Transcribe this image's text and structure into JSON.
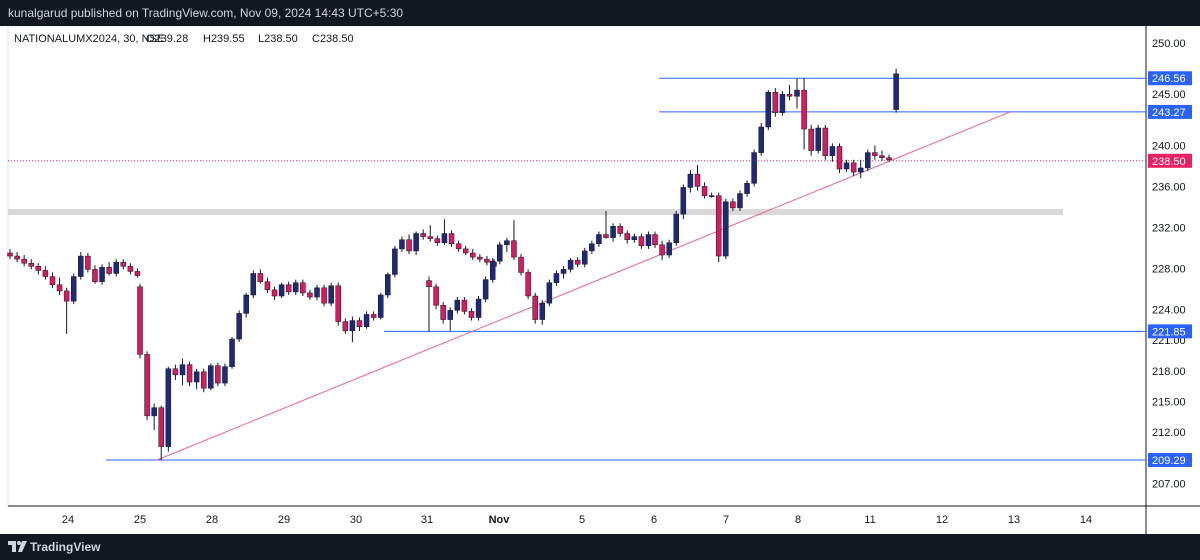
{
  "header": {
    "published": "kunalgarud published on TradingView.com, Nov 09, 2024 14:43 UTC+5:30"
  },
  "footer": {
    "brand": "TradingView"
  },
  "colors": {
    "up": "#1e2a78",
    "down": "#d81b60",
    "hline": "#2962ff",
    "trend": "#f06292",
    "zone": "#d8d8d8",
    "price_tag": "#2962ff",
    "last_tag": "#e91e63"
  },
  "chart_data": {
    "type": "candlestick",
    "title": "NATIONALUMX2024, 30, NSE",
    "ohlc_label": {
      "o": "O239.28",
      "h": "H239.55",
      "l": "L238.50",
      "c": "C238.50"
    },
    "ylim": [
      204,
      252
    ],
    "y_ticks": [
      "250.00",
      "245.00",
      "240.00",
      "236.00",
      "232.00",
      "228.00",
      "224.00",
      "221.00",
      "218.00",
      "215.00",
      "212.00",
      "207.00"
    ],
    "y_tick_values": [
      250,
      245,
      240,
      236,
      232,
      228,
      224,
      221,
      218,
      215,
      212,
      207
    ],
    "x_ticks": [
      "24",
      "25",
      "28",
      "29",
      "30",
      "31",
      "Nov",
      "5",
      "6",
      "7",
      "8",
      "11",
      "12",
      "13",
      "14"
    ],
    "price_labels": [
      {
        "label": "246.56",
        "value": 246.56,
        "kind": "level"
      },
      {
        "label": "243.27",
        "value": 243.27,
        "kind": "level"
      },
      {
        "label": "238.50",
        "value": 238.5,
        "kind": "last"
      },
      {
        "label": "221.85",
        "value": 221.85,
        "kind": "level"
      },
      {
        "label": "209.29",
        "value": 209.29,
        "kind": "level"
      }
    ],
    "horizontal_lines": [
      {
        "value": 246.56,
        "from_date": "Nov 6",
        "to": "right"
      },
      {
        "value": 243.27,
        "from_date": "Nov 6",
        "to": "right"
      },
      {
        "value": 221.85,
        "from_date": "Oct 30",
        "to": "right"
      },
      {
        "value": 209.29,
        "from_date": "Oct 24",
        "to": "right"
      }
    ],
    "zone": {
      "low": 233.2,
      "high": 233.8
    },
    "trendline": {
      "from": {
        "date": "Oct 25",
        "value": 209.29
      },
      "to": {
        "date": "Nov 13",
        "value": 243.27
      }
    },
    "candles": [
      [
        229.5,
        229.9,
        228.9,
        229.2
      ],
      [
        229.2,
        229.6,
        228.6,
        228.9
      ],
      [
        228.9,
        229.3,
        228.2,
        228.5
      ],
      [
        228.5,
        228.9,
        227.9,
        228.2
      ],
      [
        228.2,
        228.5,
        227.4,
        227.8
      ],
      [
        227.8,
        228.2,
        226.9,
        227.2
      ],
      [
        227.2,
        227.6,
        226.1,
        226.4
      ],
      [
        226.4,
        227.1,
        225.4,
        225.8
      ],
      [
        225.8,
        226.1,
        221.6,
        224.8
      ],
      [
        224.8,
        227.5,
        224.5,
        227.2
      ],
      [
        227.2,
        229.6,
        226.9,
        229.2
      ],
      [
        229.2,
        229.5,
        227.6,
        227.9
      ],
      [
        227.9,
        228.3,
        226.5,
        226.7
      ],
      [
        226.7,
        228.4,
        226.4,
        228.1
      ],
      [
        228.1,
        228.6,
        227.3,
        227.5
      ],
      [
        227.5,
        228.9,
        227.2,
        228.6
      ],
      [
        228.6,
        228.9,
        227.9,
        228.2
      ],
      [
        228.2,
        228.5,
        227.4,
        227.7
      ],
      [
        227.7,
        228.0,
        227.1,
        227.3
      ],
      [
        226.2,
        226.5,
        219.2,
        219.6
      ],
      [
        219.6,
        219.9,
        213.2,
        213.6
      ],
      [
        213.6,
        214.8,
        212.2,
        214.4
      ],
      [
        214.4,
        214.6,
        209.29,
        210.6
      ],
      [
        210.6,
        218.4,
        210.1,
        218.2
      ],
      [
        218.2,
        218.6,
        217.1,
        217.6
      ],
      [
        217.6,
        219.2,
        216.6,
        218.6
      ],
      [
        218.6,
        218.9,
        216.5,
        216.9
      ],
      [
        216.9,
        218.2,
        216.2,
        217.9
      ],
      [
        217.9,
        218.2,
        215.9,
        216.3
      ],
      [
        216.3,
        218.7,
        216.1,
        218.5
      ],
      [
        218.5,
        218.8,
        216.5,
        216.8
      ],
      [
        216.8,
        218.7,
        216.5,
        218.4
      ],
      [
        218.4,
        221.3,
        218.2,
        221.1
      ],
      [
        221.1,
        223.9,
        220.8,
        223.6
      ],
      [
        223.6,
        225.6,
        223.2,
        225.4
      ],
      [
        225.4,
        227.8,
        225.1,
        227.5
      ],
      [
        227.5,
        227.9,
        226.5,
        226.7
      ],
      [
        226.7,
        227.1,
        225.6,
        225.9
      ],
      [
        225.9,
        226.2,
        224.9,
        225.3
      ],
      [
        225.3,
        226.6,
        225.1,
        226.4
      ],
      [
        226.4,
        226.7,
        225.4,
        225.7
      ],
      [
        225.7,
        226.9,
        225.4,
        226.6
      ],
      [
        226.6,
        226.9,
        225.3,
        225.6
      ],
      [
        225.6,
        225.9,
        224.9,
        225.2
      ],
      [
        225.2,
        226.4,
        224.9,
        226.1
      ],
      [
        226.1,
        226.4,
        224.3,
        224.6
      ],
      [
        224.6,
        226.6,
        224.3,
        226.3
      ],
      [
        226.3,
        226.6,
        222.4,
        222.8
      ],
      [
        222.8,
        223.1,
        221.6,
        221.9
      ],
      [
        221.9,
        223.3,
        220.8,
        222.9
      ],
      [
        222.9,
        223.2,
        221.9,
        222.3
      ],
      [
        222.3,
        223.8,
        222.1,
        223.5
      ],
      [
        223.5,
        223.8,
        222.9,
        223.2
      ],
      [
        223.2,
        225.6,
        223.0,
        225.4
      ],
      [
        225.4,
        227.6,
        225.1,
        227.4
      ],
      [
        227.4,
        230.2,
        227.1,
        229.9
      ],
      [
        229.9,
        231.1,
        229.6,
        230.8
      ],
      [
        230.8,
        231.3,
        229.4,
        229.7
      ],
      [
        229.7,
        231.6,
        229.3,
        231.4
      ],
      [
        231.4,
        231.8,
        230.8,
        231.1
      ],
      [
        231.1,
        232.2,
        230.6,
        230.9
      ],
      [
        230.9,
        231.2,
        230.2,
        230.5
      ],
      [
        230.5,
        232.8,
        230.3,
        231.4
      ],
      [
        231.4,
        231.7,
        230.1,
        230.4
      ],
      [
        230.4,
        230.7,
        229.6,
        229.9
      ],
      [
        229.9,
        230.2,
        229.3,
        229.5
      ],
      [
        229.5,
        229.9,
        228.8,
        229.1
      ],
      [
        229.1,
        229.4,
        228.6,
        228.9
      ],
      [
        228.9,
        229.2,
        228.3,
        228.6
      ],
      [
        228.6,
        228.9,
        227.9,
        228.2
      ],
      [
        226.8,
        227.2,
        221.85,
        226.2
      ],
      [
        226.2,
        226.5,
        224.0,
        224.4
      ],
      [
        224.4,
        224.7,
        222.6,
        223.0
      ],
      [
        223.0,
        224.2,
        221.9,
        223.9
      ],
      [
        223.9,
        225.2,
        223.6,
        224.9
      ],
      [
        224.9,
        225.2,
        223.5,
        223.8
      ],
      [
        223.8,
        224.1,
        222.9,
        223.2
      ],
      [
        223.2,
        225.3,
        222.9,
        225.0
      ],
      [
        225.0,
        227.2,
        224.7,
        226.9
      ],
      [
        226.9,
        229.0,
        226.6,
        228.7
      ],
      [
        228.7,
        230.6,
        228.4,
        230.3
      ],
      [
        230.3,
        231.0,
        229.6,
        230.7
      ],
      [
        230.7,
        232.7,
        228.8,
        229.1
      ],
      [
        229.1,
        229.4,
        227.3,
        227.6
      ],
      [
        227.6,
        227.9,
        225.0,
        225.3
      ],
      [
        225.3,
        225.6,
        222.6,
        223.0
      ],
      [
        223.0,
        224.9,
        222.5,
        224.6
      ],
      [
        224.6,
        226.9,
        224.3,
        226.6
      ],
      [
        226.6,
        227.8,
        226.3,
        227.5
      ],
      [
        227.5,
        228.2,
        227.0,
        227.9
      ],
      [
        227.9,
        229.0,
        227.6,
        228.8
      ],
      [
        228.8,
        229.1,
        228.1,
        228.4
      ],
      [
        228.4,
        230.0,
        228.1,
        229.7
      ],
      [
        229.7,
        230.7,
        229.4,
        230.4
      ],
      [
        230.4,
        231.6,
        230.1,
        231.3
      ],
      [
        231.3,
        233.6,
        230.9,
        231.0
      ],
      [
        231.0,
        232.4,
        230.6,
        232.1
      ],
      [
        232.1,
        232.4,
        231.1,
        231.4
      ],
      [
        231.4,
        231.7,
        230.4,
        230.8
      ],
      [
        230.8,
        231.4,
        230.5,
        231.1
      ],
      [
        231.1,
        231.4,
        229.9,
        230.2
      ],
      [
        230.2,
        231.6,
        229.9,
        231.3
      ],
      [
        231.3,
        231.6,
        230.0,
        230.3
      ],
      [
        230.3,
        230.7,
        228.8,
        229.3
      ],
      [
        229.3,
        230.8,
        229.0,
        230.5
      ],
      [
        230.5,
        233.6,
        230.2,
        233.3
      ],
      [
        233.3,
        236.2,
        232.8,
        235.9
      ],
      [
        235.9,
        237.6,
        235.4,
        237.2
      ],
      [
        237.2,
        238.1,
        235.6,
        236.0
      ],
      [
        236.0,
        236.4,
        234.8,
        235.1
      ],
      [
        235.1,
        235.4,
        234.9,
        235.1
      ],
      [
        235.1,
        235.4,
        228.6,
        229.2
      ],
      [
        229.2,
        234.8,
        228.9,
        234.5
      ],
      [
        234.5,
        234.8,
        233.6,
        233.9
      ],
      [
        233.9,
        235.6,
        233.6,
        235.3
      ],
      [
        235.3,
        236.6,
        235.0,
        236.3
      ],
      [
        236.3,
        239.6,
        236.0,
        239.3
      ],
      [
        239.3,
        242.2,
        239.0,
        241.8
      ],
      [
        241.8,
        245.4,
        241.5,
        245.2
      ],
      [
        245.2,
        245.6,
        242.8,
        243.2
      ],
      [
        243.2,
        245.3,
        242.9,
        245.0
      ],
      [
        245.0,
        245.9,
        244.4,
        244.8
      ],
      [
        244.8,
        246.56,
        243.6,
        245.4
      ],
      [
        245.4,
        246.56,
        239.6,
        241.6
      ],
      [
        241.6,
        242.0,
        239.0,
        239.5
      ],
      [
        239.5,
        242.0,
        239.2,
        241.7
      ],
      [
        241.7,
        242.0,
        238.6,
        239.0
      ],
      [
        239.0,
        240.2,
        238.4,
        239.9
      ],
      [
        239.9,
        240.2,
        237.3,
        237.7
      ],
      [
        237.7,
        238.6,
        237.4,
        238.3
      ],
      [
        238.3,
        238.6,
        237.0,
        237.4
      ],
      [
        237.4,
        238.6,
        236.8,
        237.8
      ],
      [
        237.8,
        239.6,
        237.5,
        239.3
      ],
      [
        239.3,
        240.0,
        238.6,
        239.0
      ],
      [
        239.0,
        239.5,
        238.5,
        238.8
      ],
      [
        238.8,
        239.1,
        238.4,
        238.6
      ],
      [
        243.5,
        247.5,
        243.2,
        247.0
      ],
      [
        247.0,
        247.2,
        244.5,
        244.9
      ],
      [
        244.9,
        245.6,
        242.3,
        242.6
      ],
      [
        242.6,
        242.9,
        240.9,
        241.4
      ],
      [
        241.4,
        242.0,
        240.4,
        240.8
      ],
      [
        240.8,
        241.4,
        240.3,
        241.1
      ],
      [
        241.1,
        241.4,
        239.3,
        239.6
      ],
      [
        239.6,
        240.0,
        238.6,
        239.1
      ],
      [
        239.1,
        239.6,
        238.5,
        239.3
      ],
      [
        239.3,
        243.3,
        238.9,
        242.5
      ],
      [
        242.5,
        242.8,
        236.9,
        237.3
      ],
      [
        237.3,
        237.7,
        236.5,
        237.0
      ],
      [
        237.0,
        242.6,
        236.8,
        242.4
      ],
      [
        242.4,
        242.8,
        238.9,
        239.3
      ],
      [
        239.3,
        239.6,
        238.5,
        238.5
      ]
    ]
  }
}
